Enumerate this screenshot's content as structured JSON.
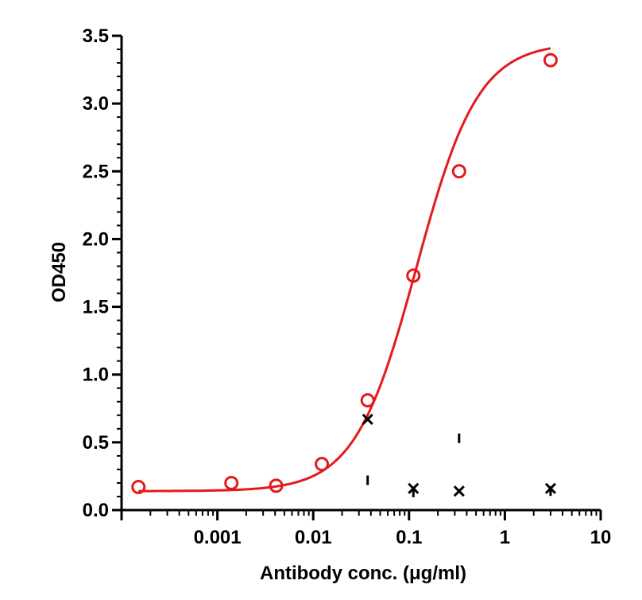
{
  "chart_data": {
    "type": "scatter",
    "title": "",
    "xlabel": "Antibody conc. (μg/ml)",
    "ylabel": "OD450",
    "x_scale": "log",
    "xlim": [
      0.0001,
      10
    ],
    "ylim": [
      0,
      3.5
    ],
    "x_ticks": [
      0.001,
      0.01,
      0.1,
      1,
      10
    ],
    "x_tick_labels": [
      "0.001",
      "0.01",
      "0.1",
      "1",
      "10"
    ],
    "y_ticks": [
      0,
      0.5,
      1.0,
      1.5,
      2.0,
      2.5,
      3.0,
      3.5
    ],
    "y_tick_labels": [
      "0.0",
      "0.5",
      "1.0",
      "1.5",
      "2.0",
      "2.5",
      "3.0",
      "3.5"
    ],
    "grid": false,
    "legend": "none",
    "series": [
      {
        "marker": "open-circle",
        "color": "#e31a1c",
        "fit": "sigmoidal",
        "x": [
          0.00015,
          0.0014,
          0.0041,
          0.0123,
          0.037,
          0.111,
          0.333,
          3.0
        ],
        "y": [
          0.17,
          0.2,
          0.18,
          0.34,
          0.81,
          1.73,
          2.5,
          3.32
        ]
      },
      {
        "marker": "x",
        "color": "#000000",
        "x": [
          0.037,
          0.111,
          0.333,
          3.0
        ],
        "y": [
          0.67,
          0.16,
          0.14,
          0.16
        ]
      },
      {
        "marker": "vertical-bar",
        "color": "#000000",
        "x": [
          0.037,
          0.111,
          0.333,
          3.0
        ],
        "y": [
          0.22,
          0.13,
          0.53,
          0.14
        ]
      }
    ]
  }
}
